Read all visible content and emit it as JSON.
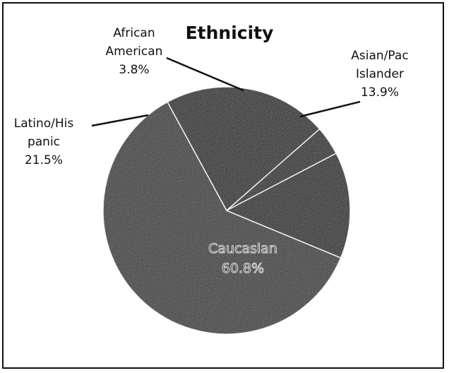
{
  "chart_data": {
    "type": "pie",
    "title": "Ethnicity",
    "slices": [
      {
        "name": "Caucasian",
        "value": 60.8,
        "value_label": "60.8%",
        "color": "#2e2e2e",
        "label_lines": [
          "Caucasian"
        ]
      },
      {
        "name": "Latino/Hispanic",
        "value": 21.5,
        "value_label": "21.5%",
        "color": "#000000",
        "label_lines": [
          "Latino/His",
          "panic"
        ]
      },
      {
        "name": "African American",
        "value": 3.8,
        "value_label": "3.8%",
        "color": "#000000",
        "label_lines": [
          "African",
          "American"
        ]
      },
      {
        "name": "Asian/Pac Islander",
        "value": 13.9,
        "value_label": "13.9%",
        "color": "#000000",
        "label_lines": [
          "Asian/Pac",
          "Islander"
        ]
      }
    ],
    "legend": "none"
  }
}
